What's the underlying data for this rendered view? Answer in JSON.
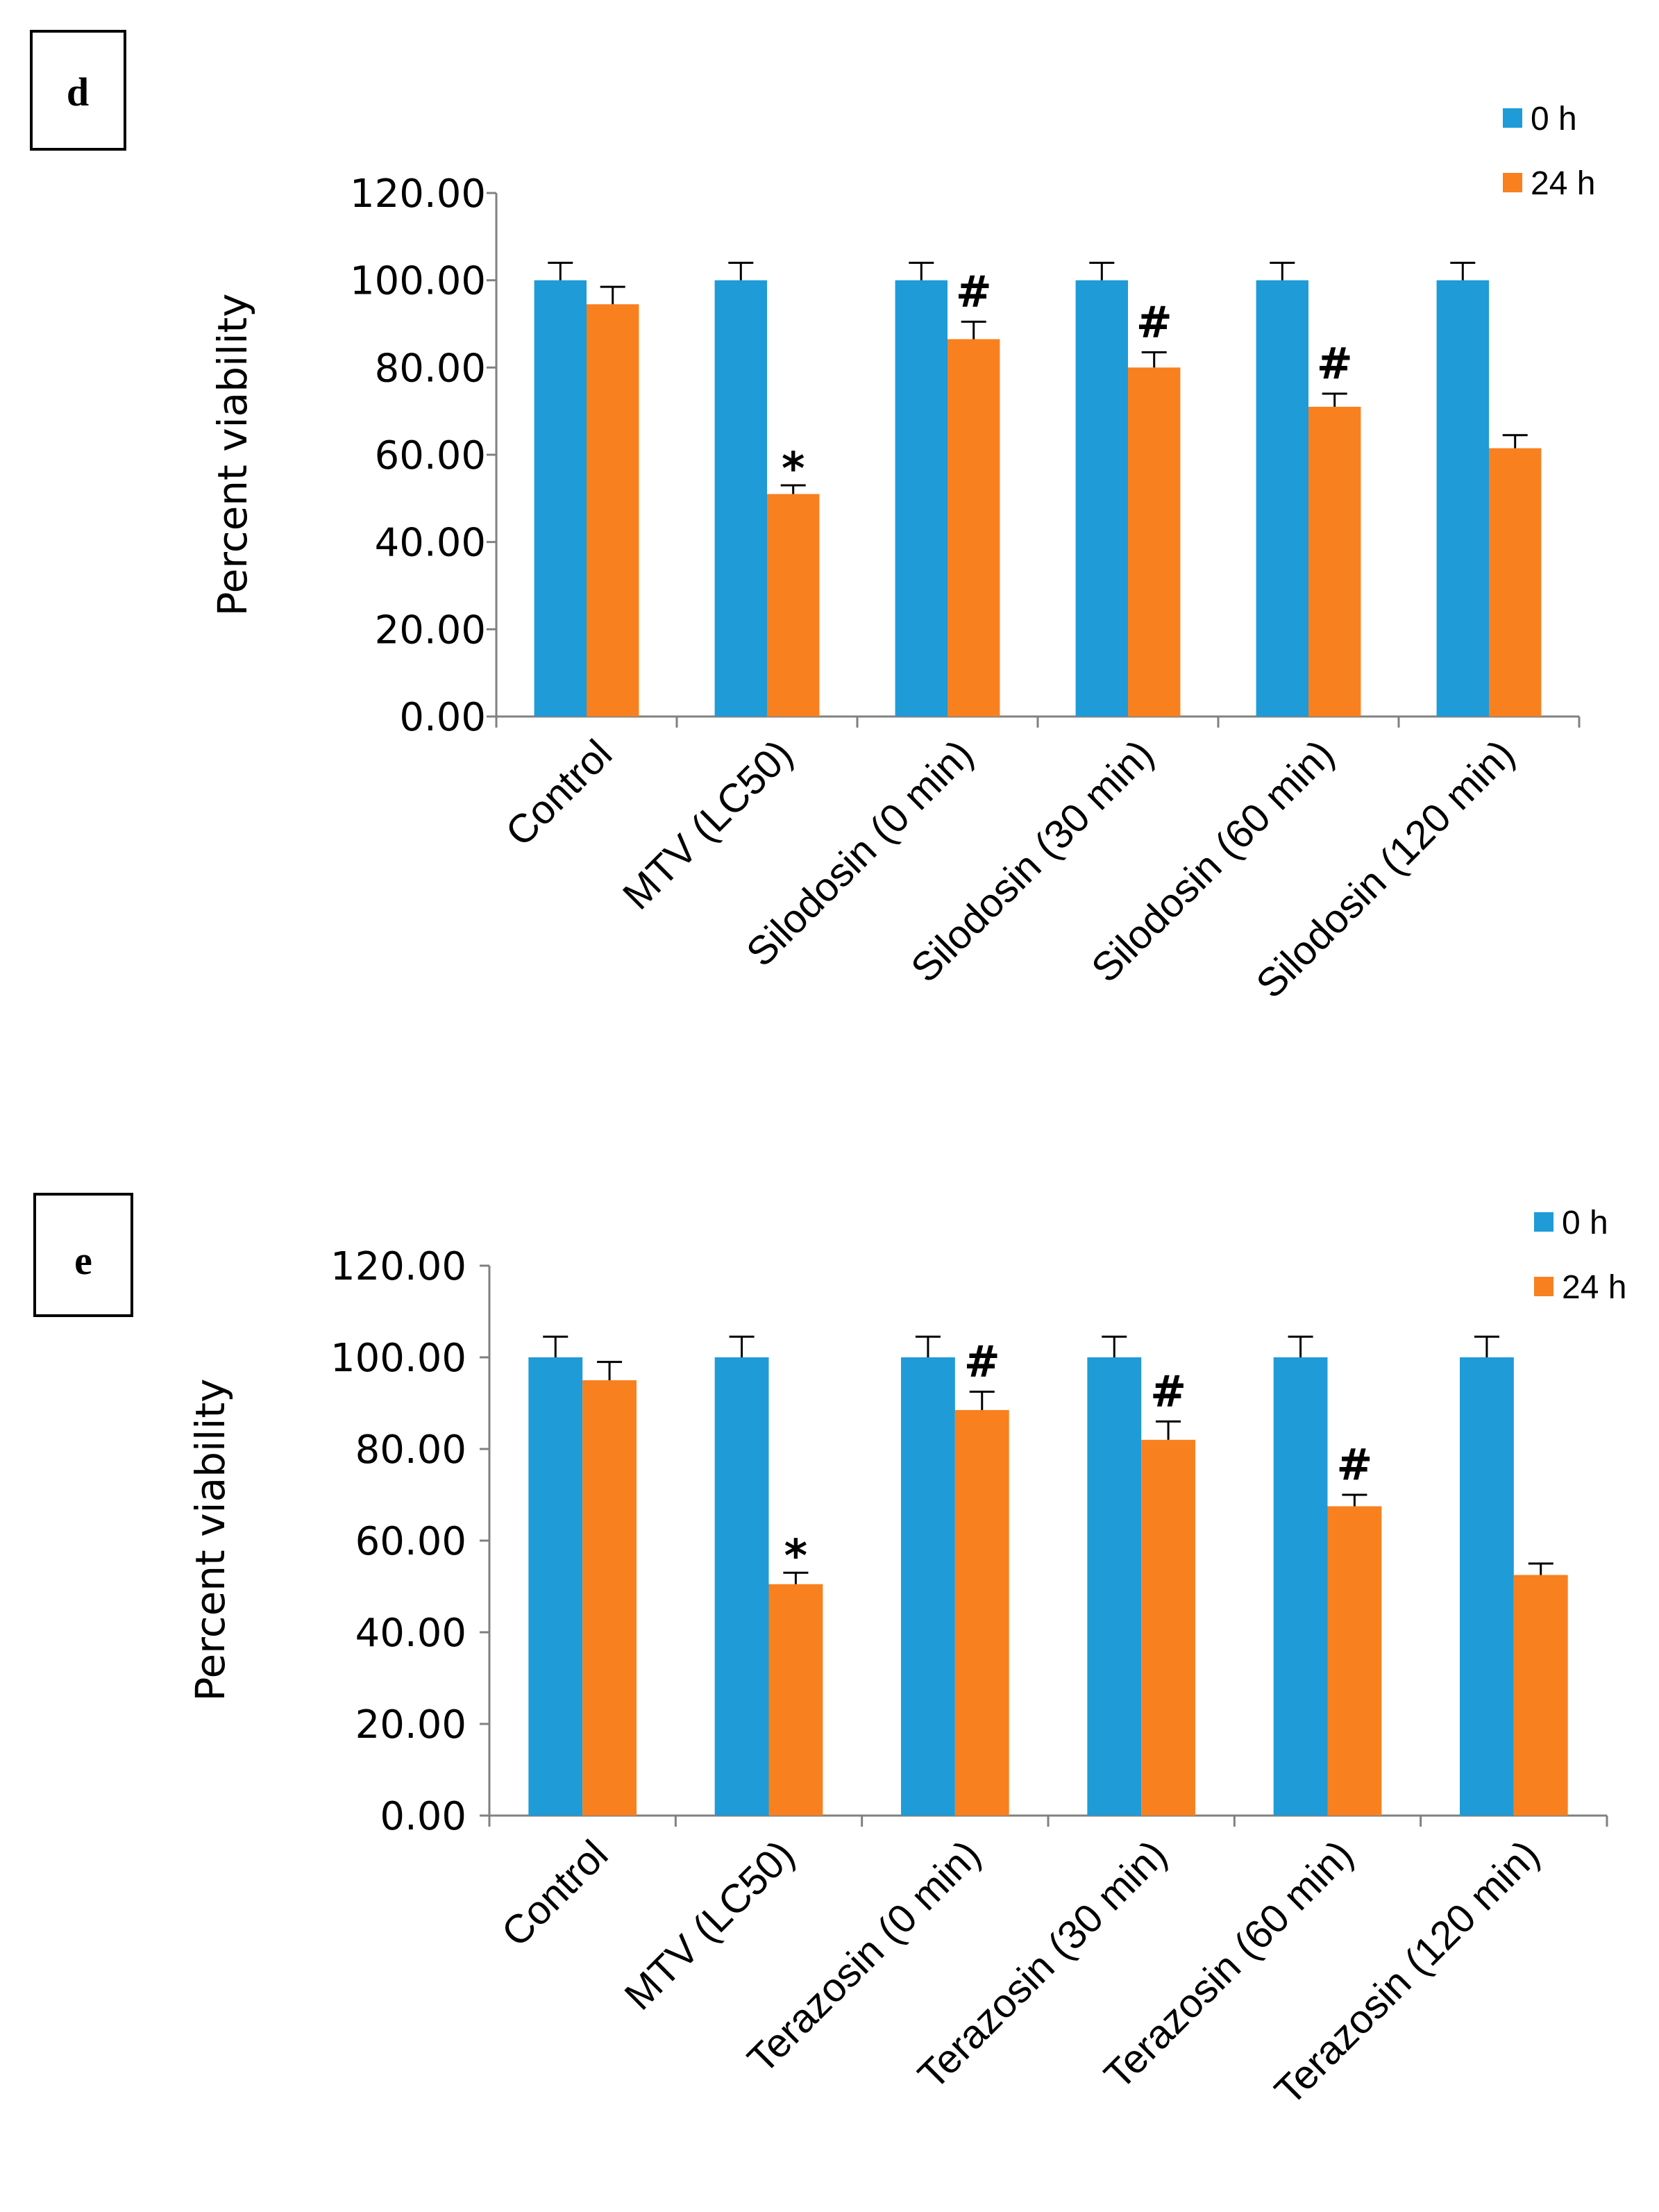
{
  "colors": {
    "series0": "#1f9bd7",
    "series1": "#f8801f",
    "axis": "#808080",
    "text": "#000000"
  },
  "chart_data": [
    {
      "panel_label": "d",
      "type": "bar",
      "ylabel": "Percent viability",
      "xlabel": "",
      "ylim": [
        0,
        120
      ],
      "yticks": [
        "0.00",
        "20.00",
        "40.00",
        "60.00",
        "80.00",
        "100.00",
        "120.00"
      ],
      "categories": [
        "Control",
        "MTV (LC50)",
        "Silodosin (0 min)",
        "Silodosin (30 min)",
        "Silodosin (60 min)",
        "Silodosin  (120 min)"
      ],
      "series": [
        {
          "name": "0 h",
          "values": [
            100,
            100,
            100,
            100,
            100,
            100
          ],
          "errors": [
            4,
            4,
            4,
            4,
            4,
            4
          ]
        },
        {
          "name": "24 h",
          "values": [
            94.5,
            51,
            86.5,
            80,
            71,
            61.5
          ],
          "errors": [
            4,
            2,
            4,
            3.5,
            3,
            3
          ]
        }
      ],
      "annotations": [
        "",
        "*",
        "#",
        "#",
        "#",
        ""
      ],
      "legend": [
        "0 h",
        "24 h"
      ],
      "legend_position": "top-right"
    },
    {
      "panel_label": "e",
      "type": "bar",
      "ylabel": "Percent viability",
      "xlabel": "",
      "ylim": [
        0,
        120
      ],
      "yticks": [
        "0.00",
        "20.00",
        "40.00",
        "60.00",
        "80.00",
        "100.00",
        "120.00"
      ],
      "categories": [
        "Control",
        "MTV (LC50)",
        "Terazosin (0 min)",
        "Terazosin (30 min)",
        "Terazosin (60 min)",
        "Terazosin  (120 min)"
      ],
      "series": [
        {
          "name": "0 h",
          "values": [
            100,
            100,
            100,
            100,
            100,
            100
          ],
          "errors": [
            4.5,
            4.5,
            4.5,
            4.5,
            4.5,
            4.5
          ]
        },
        {
          "name": "24 h",
          "values": [
            95,
            50.5,
            88.5,
            82,
            67.5,
            52.5
          ],
          "errors": [
            4,
            2.5,
            4,
            4,
            2.5,
            2.5
          ]
        }
      ],
      "annotations": [
        "",
        "*",
        "#",
        "#",
        "#",
        ""
      ],
      "legend": [
        "0 h",
        "24 h"
      ],
      "legend_position": "top-right"
    }
  ]
}
